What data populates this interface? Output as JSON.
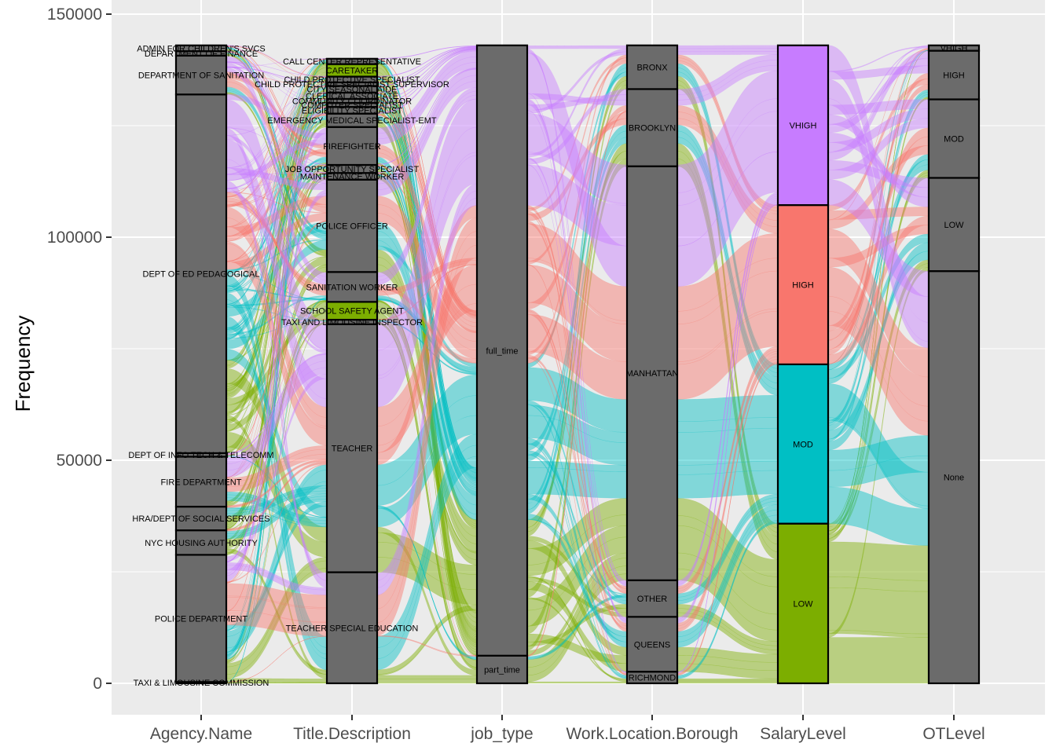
{
  "chart_data": {
    "type": "alluvial",
    "ylabel": "Frequency",
    "ylim": [
      0,
      150000
    ],
    "y_ticks": [
      0,
      50000,
      100000,
      150000
    ],
    "y_tick_labels": [
      "0",
      "50000",
      "100000",
      "150000"
    ],
    "axes": [
      "Agency.Name",
      "Title.Description",
      "job_type",
      "Work.Location.Borough",
      "SalaryLevel",
      "OTLevel"
    ],
    "fill_variable": "SalaryLevel",
    "colors": {
      "VHIGH": "#c77cff",
      "HIGH": "#f8766d",
      "MOD": "#00bfc4",
      "LOW": "#7cae00",
      "stratum": "#6b6b6b"
    },
    "strata": [
      {
        "axis": "Agency.Name",
        "items": [
          {
            "label": "TAXI & LIMOUSINE COMMISSION",
            "value": 300
          },
          {
            "label": "POLICE DEPARTMENT",
            "value": 28500
          },
          {
            "label": "NYC HOUSING AUTHORITY",
            "value": 5500
          },
          {
            "label": "HRA/DEPT OF SOCIAL SERVICES",
            "value": 5300
          },
          {
            "label": "FIRE DEPARTMENT",
            "value": 11200
          },
          {
            "label": "DEPT OF INFO TECH & TELECOMM",
            "value": 800
          },
          {
            "label": "DEPT OF ED PEDAGOGICAL",
            "value": 80400
          },
          {
            "label": "DEPARTMENT OF SANITATION",
            "value": 8700
          },
          {
            "label": "DEPARTMENT OF FINANCE",
            "value": 1000
          },
          {
            "label": "ADMIN FOR CHILDREN'S SVCS",
            "value": 1300
          }
        ]
      },
      {
        "axis": "Title.Description",
        "items": [
          {
            "label": "TEACHER SPECIAL EDUCATION",
            "value": 24900
          },
          {
            "label": "TEACHER",
            "value": 55600
          },
          {
            "label": "TAXI AND LIMOUSINE INSPECTOR",
            "value": 1000
          },
          {
            "label": "SCHOOL SAFETY AGENT",
            "value": 4000
          },
          {
            "label": "SANITATION WORKER",
            "value": 6700
          },
          {
            "label": "POLICE OFFICER",
            "value": 20700
          },
          {
            "label": "MAINTENANCE WORKER",
            "value": 1500
          },
          {
            "label": "JOB OPPORTUNITY SPECIALIST",
            "value": 1800
          },
          {
            "label": "FIREFIGHTER",
            "value": 8500
          },
          {
            "label": "EMERGENCY MEDICAL SPECIALIST-EMT",
            "value": 3000
          },
          {
            "label": "ELIGIBILITY SPECIALIST",
            "value": 1500
          },
          {
            "label": "COMPUTER SPECIALIST",
            "value": 900
          },
          {
            "label": "COMMUNITY COORDINATOR",
            "value": 900
          },
          {
            "label": "CLERICAL ASSOCIATE",
            "value": 1400
          },
          {
            "label": "CITY SEASONAL AIDE",
            "value": 1500
          },
          {
            "label": "CHILD PROTECTIVE SPECIALIST SUPERVISOR",
            "value": 800
          },
          {
            "label": "CHILD PROTECTIVE SPECIALIST",
            "value": 1300
          },
          {
            "label": "CARETAKER",
            "value": 2800
          },
          {
            "label": "CALL CENTER REPRESENTATIVE",
            "value": 1200
          }
        ]
      },
      {
        "axis": "job_type",
        "items": [
          {
            "label": "part_time",
            "value": 6200
          },
          {
            "label": "full_time",
            "value": 136800
          }
        ]
      },
      {
        "axis": "Work.Location.Borough",
        "items": [
          {
            "label": "RICHMOND",
            "value": 2600
          },
          {
            "label": "QUEENS",
            "value": 12300
          },
          {
            "label": "OTHER",
            "value": 8200
          },
          {
            "label": "MANHATTAN",
            "value": 92800
          },
          {
            "label": "BROOKLYN",
            "value": 17300
          },
          {
            "label": "BRONX",
            "value": 9800
          }
        ]
      },
      {
        "axis": "SalaryLevel",
        "items": [
          {
            "label": "LOW",
            "value": 35800
          },
          {
            "label": "MOD",
            "value": 35700
          },
          {
            "label": "HIGH",
            "value": 35700
          },
          {
            "label": "VHIGH",
            "value": 35800
          }
        ]
      },
      {
        "axis": "OTLevel",
        "items": [
          {
            "label": "None",
            "value": 92400
          },
          {
            "label": "LOW",
            "value": 20900
          },
          {
            "label": "MOD",
            "value": 17600
          },
          {
            "label": "HIGH",
            "value": 10900
          },
          {
            "label": "VHIGH",
            "value": 1200
          }
        ]
      }
    ]
  }
}
